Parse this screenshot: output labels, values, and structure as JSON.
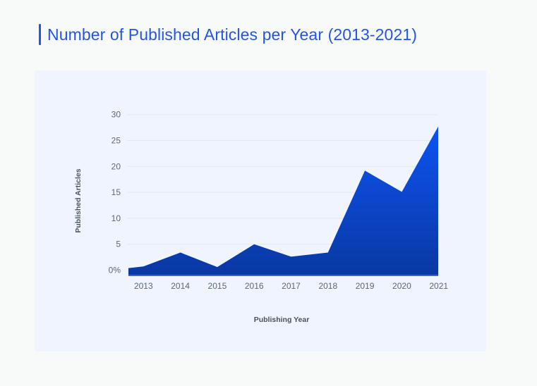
{
  "page": {
    "background_color": "#f8f9f9",
    "card_background_color": "#eff4fe"
  },
  "header": {
    "title": "Number of Published Articles per Year (2013-2021)",
    "accent_color": "#2356e6"
  },
  "chart_data": {
    "type": "area",
    "title": "",
    "xlabel": "Publishing Year",
    "ylabel": "Published Articles",
    "categories": [
      "2013",
      "2014",
      "2015",
      "2016",
      "2017",
      "2018",
      "2019",
      "2020",
      "2021"
    ],
    "values": [
      0.7,
      3.4,
      0.6,
      5.0,
      2.6,
      3.4,
      19.2,
      15.1,
      27.7
    ],
    "ylim": [
      0,
      30
    ],
    "yticks": [
      0,
      5,
      10,
      15,
      20,
      25,
      30
    ],
    "ytick_labels": [
      "0%",
      "5",
      "10",
      "15",
      "20",
      "25",
      "30"
    ],
    "grid": true,
    "legend": "none",
    "colors": {
      "area_gradient_top": "#0d54f6",
      "area_gradient_bottom": "#0a38a3",
      "baseline_color": "#3c63c9",
      "gridline_color": "#e2e7f0",
      "tick_label_color": "#5c6874",
      "axis_title_color": "#47525f"
    }
  }
}
